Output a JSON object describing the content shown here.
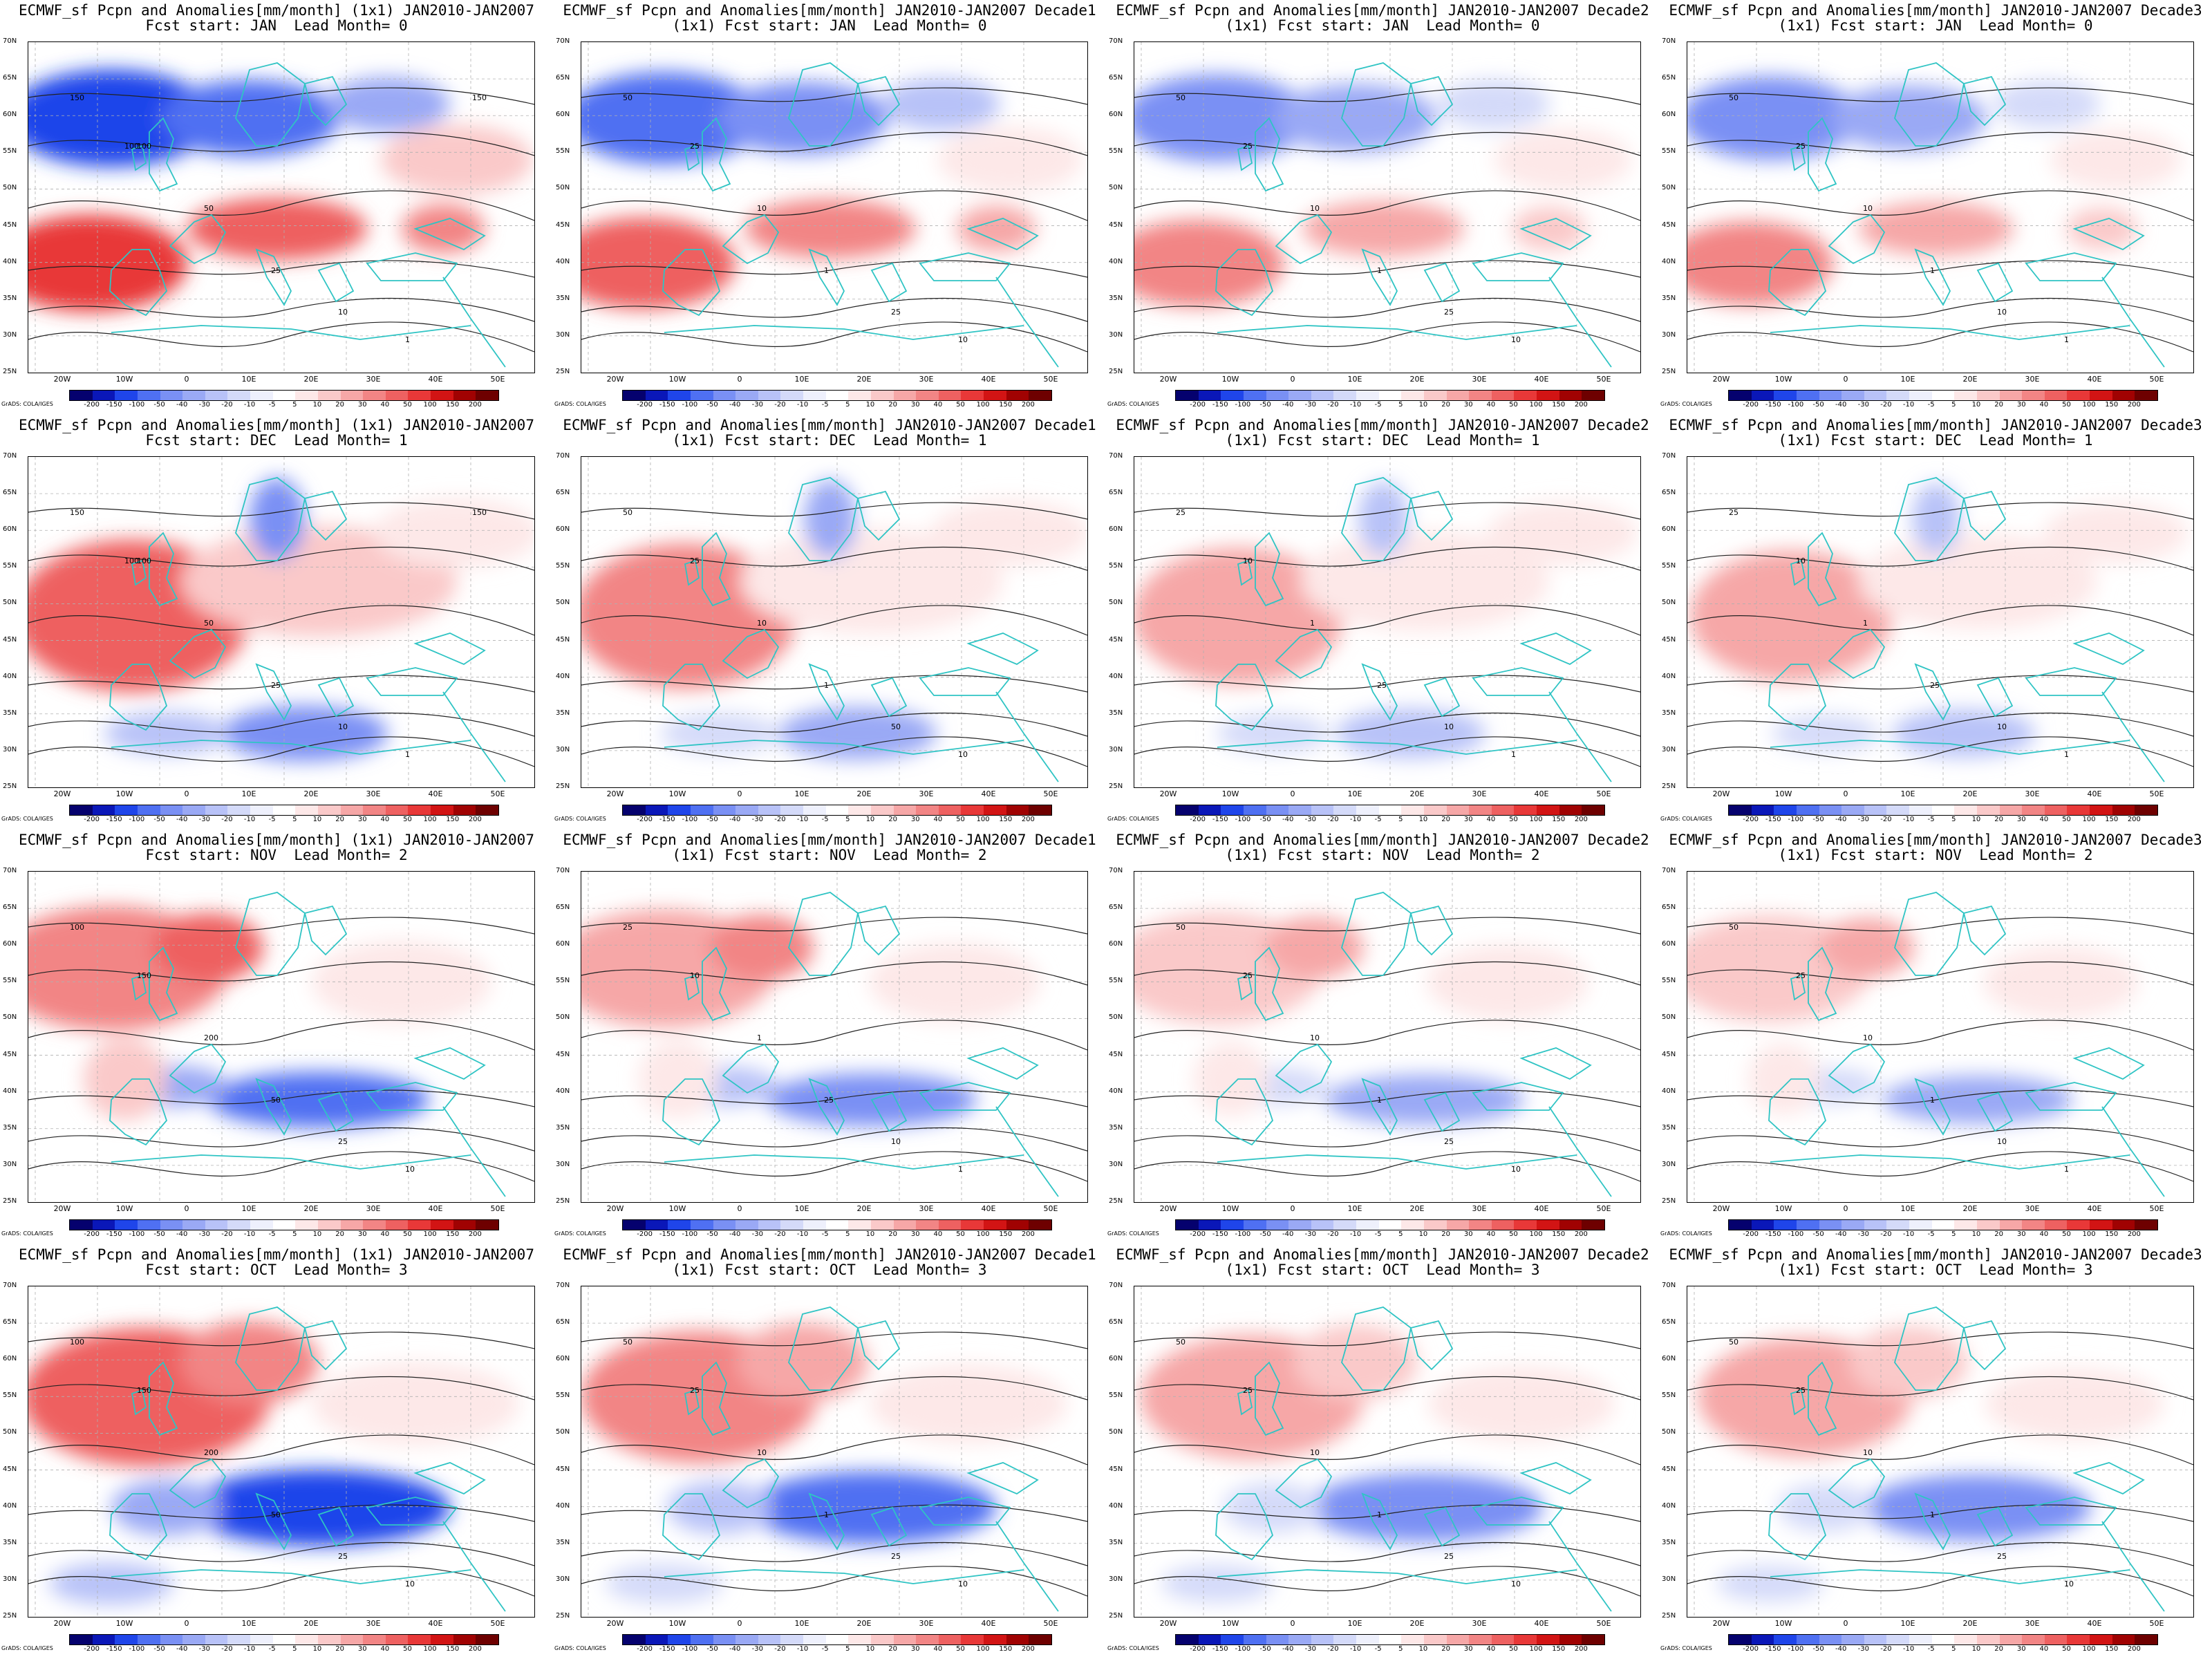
{
  "lat_labels": [
    "70N",
    "65N",
    "60N",
    "55N",
    "50N",
    "45N",
    "40N",
    "35N",
    "30N",
    "25N"
  ],
  "lon_labels": [
    "20W",
    "10W",
    "0",
    "10E",
    "20E",
    "30E",
    "40E",
    "50E"
  ],
  "colorbar_labels": [
    "-200",
    "-150",
    "-100",
    "-50",
    "-40",
    "-30",
    "-20",
    "-10",
    "-5",
    "5",
    "10",
    "20",
    "30",
    "40",
    "50",
    "100",
    "150",
    "200"
  ],
  "colorbar_colors": [
    "#05016e",
    "#0a17b8",
    "#1f45ea",
    "#4f70f2",
    "#7a90f4",
    "#9aa9f5",
    "#b8c2f8",
    "#d4daf9",
    "#eef0fc",
    "#ffffff",
    "#fde8e8",
    "#fac9c9",
    "#f6a7a7",
    "#f28585",
    "#ee6161",
    "#e83838",
    "#d21414",
    "#a00202",
    "#6e0000"
  ],
  "credit": "GrADS: COLA/IGES",
  "panels": [
    {
      "title1": "ECMWF_sf Pcpn and Anomalies[mm/month] (1x1) JAN2010-JAN2007",
      "title2": "Fcst start: JAN  Lead Month= 0",
      "contour_labels": [
        "150",
        "100",
        "50",
        "25",
        "10",
        "1",
        "150",
        "100"
      ]
    },
    {
      "title1": "ECMWF_sf Pcpn and Anomalies[mm/month] JAN2010-JAN2007 Decade1",
      "title2": "(1x1) Fcst start: JAN  Lead Month= 0",
      "contour_labels": [
        "50",
        "25",
        "10",
        "1",
        "25",
        "10"
      ]
    },
    {
      "title1": "ECMWF_sf Pcpn and Anomalies[mm/month] JAN2010-JAN2007 Decade2",
      "title2": "(1x1) Fcst start: JAN  Lead Month= 0",
      "contour_labels": [
        "50",
        "25",
        "10",
        "1",
        "25",
        "10"
      ]
    },
    {
      "title1": "ECMWF_sf Pcpn and Anomalies[mm/month] JAN2010-JAN2007 Decade3",
      "title2": "(1x1) Fcst start: JAN  Lead Month= 0",
      "contour_labels": [
        "50",
        "25",
        "10",
        "1",
        "10",
        "1"
      ]
    },
    {
      "title1": "ECMWF_sf Pcpn and Anomalies[mm/month] (1x1) JAN2010-JAN2007",
      "title2": "Fcst start: DEC  Lead Month= 1",
      "contour_labels": [
        "150",
        "100",
        "50",
        "25",
        "10",
        "1",
        "150",
        "100"
      ]
    },
    {
      "title1": "ECMWF_sf Pcpn and Anomalies[mm/month] JAN2010-JAN2007 Decade1",
      "title2": "(1x1) Fcst start: DEC  Lead Month= 1",
      "contour_labels": [
        "50",
        "25",
        "10",
        "1",
        "50",
        "10"
      ]
    },
    {
      "title1": "ECMWF_sf Pcpn and Anomalies[mm/month] JAN2010-JAN2007 Decade2",
      "title2": "(1x1) Fcst start: DEC  Lead Month= 1",
      "contour_labels": [
        "25",
        "10",
        "1",
        "25",
        "10",
        "1"
      ]
    },
    {
      "title1": "ECMWF_sf Pcpn and Anomalies[mm/month] JAN2010-JAN2007 Decade3",
      "title2": "(1x1) Fcst start: DEC  Lead Month= 1",
      "contour_labels": [
        "25",
        "10",
        "1",
        "25",
        "10",
        "1"
      ]
    },
    {
      "title1": "ECMWF_sf Pcpn and Anomalies[mm/month] (1x1) JAN2010-JAN2007",
      "title2": "Fcst start: NOV  Lead Month= 2",
      "contour_labels": [
        "100",
        "150",
        "200",
        "50",
        "25",
        "10"
      ]
    },
    {
      "title1": "ECMWF_sf Pcpn and Anomalies[mm/month] JAN2010-JAN2007 Decade1",
      "title2": "(1x1) Fcst start: NOV  Lead Month= 2",
      "contour_labels": [
        "25",
        "10",
        "1",
        "25",
        "10",
        "1"
      ]
    },
    {
      "title1": "ECMWF_sf Pcpn and Anomalies[mm/month] JAN2010-JAN2007 Decade2",
      "title2": "(1x1) Fcst start: NOV  Lead Month= 2",
      "contour_labels": [
        "50",
        "25",
        "10",
        "1",
        "25",
        "10"
      ]
    },
    {
      "title1": "ECMWF_sf Pcpn and Anomalies[mm/month] JAN2010-JAN2007 Decade3",
      "title2": "(1x1) Fcst start: NOV  Lead Month= 2",
      "contour_labels": [
        "50",
        "25",
        "10",
        "1",
        "10",
        "1"
      ]
    },
    {
      "title1": "ECMWF_sf Pcpn and Anomalies[mm/month] (1x1) JAN2010-JAN2007",
      "title2": "Fcst start: OCT  Lead Month= 3",
      "contour_labels": [
        "100",
        "150",
        "200",
        "50",
        "25",
        "10"
      ]
    },
    {
      "title1": "ECMWF_sf Pcpn and Anomalies[mm/month] JAN2010-JAN2007 Decade1",
      "title2": "(1x1) Fcst start: OCT  Lead Month= 3",
      "contour_labels": [
        "50",
        "25",
        "10",
        "1",
        "25",
        "10"
      ]
    },
    {
      "title1": "ECMWF_sf Pcpn and Anomalies[mm/month] JAN2010-JAN2007 Decade2",
      "title2": "(1x1) Fcst start: OCT  Lead Month= 3",
      "contour_labels": [
        "50",
        "25",
        "10",
        "1",
        "25",
        "10"
      ]
    },
    {
      "title1": "ECMWF_sf Pcpn and Anomalies[mm/month] JAN2010-JAN2007 Decade3",
      "title2": "(1x1) Fcst start: OCT  Lead Month= 3",
      "contour_labels": [
        "50",
        "25",
        "10",
        "1",
        "25",
        "10"
      ]
    }
  ]
}
